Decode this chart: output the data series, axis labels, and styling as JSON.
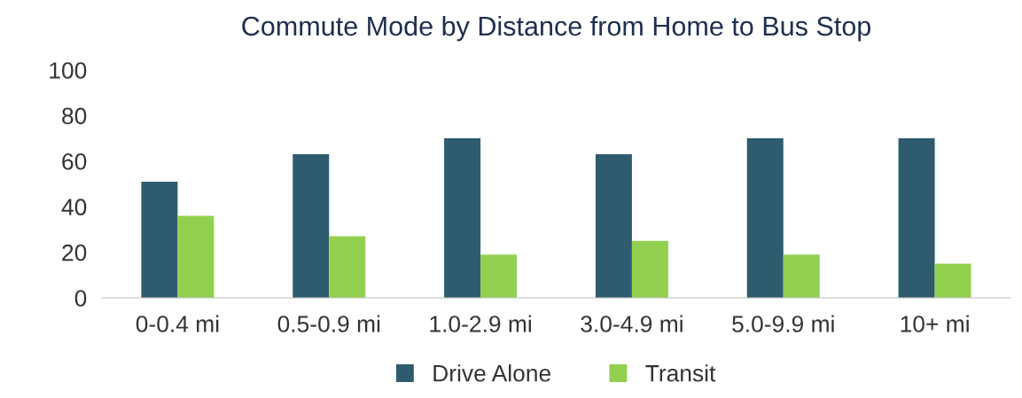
{
  "chart_data": {
    "type": "bar",
    "title": "Commute Mode by Distance from Home to Bus Stop",
    "categories": [
      "0-0.4 mi",
      "0.5-0.9 mi",
      "1.0-2.9 mi",
      "3.0-4.9 mi",
      "5.0-9.9 mi",
      "10+ mi"
    ],
    "series": [
      {
        "name": "Drive Alone",
        "color": "#2e5b6e",
        "values": [
          51,
          63,
          70,
          63,
          70,
          70
        ]
      },
      {
        "name": "Transit",
        "color": "#92d050",
        "values": [
          36,
          27,
          19,
          25,
          19,
          15
        ]
      }
    ],
    "ylim": [
      0,
      100
    ],
    "yticks": [
      0,
      20,
      40,
      60,
      80,
      100
    ],
    "grid": false,
    "legend": "bottom"
  }
}
